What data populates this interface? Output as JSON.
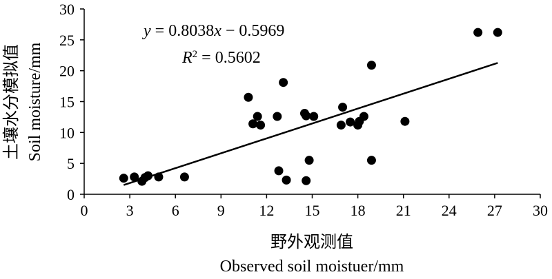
{
  "chart_data": {
    "type": "scatter",
    "xlabel_cn": "野外观测值",
    "xlabel_en": "Observed soil moistuer/mm",
    "ylabel_cn": "土壤水分模拟值",
    "ylabel_en": "Soil moisture/mm",
    "xlim": [
      0,
      30
    ],
    "ylim": [
      0,
      30
    ],
    "xticks": [
      "0",
      "3",
      "6",
      "9",
      "12",
      "15",
      "18",
      "21",
      "24",
      "27",
      "30"
    ],
    "yticks": [
      "0",
      "5",
      "10",
      "15",
      "20",
      "25",
      "30"
    ],
    "grid": false,
    "equation": {
      "y_var": "y",
      "eq_rest": " = 0.8038",
      "x_var": "x",
      "eq_tail": " −  0.5969",
      "r_var": "R",
      "r_sup": "2",
      "r_rest": " = 0.5602"
    },
    "trendline": {
      "slope": 0.8038,
      "intercept": -0.5969,
      "x_range": [
        2.6,
        27.2
      ]
    },
    "points": [
      [
        2.6,
        2.6
      ],
      [
        3.3,
        2.8
      ],
      [
        3.8,
        2.1
      ],
      [
        4.0,
        2.7
      ],
      [
        4.2,
        3.0
      ],
      [
        4.9,
        2.8
      ],
      [
        6.6,
        2.8
      ],
      [
        10.8,
        15.7
      ],
      [
        11.1,
        11.4
      ],
      [
        11.4,
        12.6
      ],
      [
        11.6,
        11.2
      ],
      [
        12.7,
        12.6
      ],
      [
        12.8,
        3.8
      ],
      [
        13.1,
        18.1
      ],
      [
        13.3,
        2.3
      ],
      [
        14.5,
        13.1
      ],
      [
        14.6,
        12.7
      ],
      [
        14.6,
        2.2
      ],
      [
        14.8,
        5.5
      ],
      [
        15.1,
        12.6
      ],
      [
        16.9,
        11.2
      ],
      [
        17.0,
        14.1
      ],
      [
        17.5,
        11.7
      ],
      [
        18.0,
        11.2
      ],
      [
        18.1,
        11.8
      ],
      [
        18.4,
        12.6
      ],
      [
        18.9,
        20.9
      ],
      [
        18.9,
        5.5
      ],
      [
        21.1,
        11.8
      ],
      [
        25.9,
        26.2
      ],
      [
        27.2,
        26.2
      ]
    ]
  }
}
